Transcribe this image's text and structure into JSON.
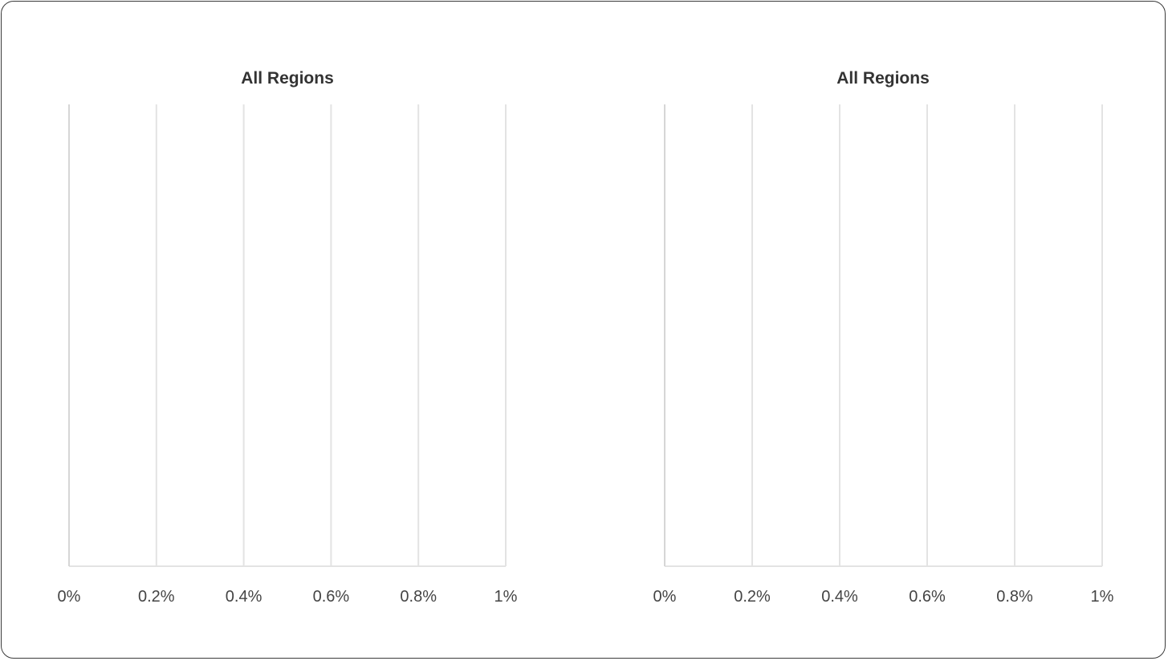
{
  "chart_data": [
    {
      "type": "bar",
      "title": "All Regions",
      "orientation": "horizontal",
      "categories": [],
      "series": [],
      "xlim": [
        0,
        1
      ],
      "x_ticks": [
        0,
        0.2,
        0.4,
        0.6,
        0.8,
        1
      ],
      "x_tick_labels": [
        "0%",
        "0.2%",
        "0.4%",
        "0.6%",
        "0.8%",
        "1%"
      ],
      "grid": true
    },
    {
      "type": "bar",
      "title": "All Regions",
      "orientation": "horizontal",
      "categories": [],
      "series": [],
      "xlim": [
        0,
        1
      ],
      "x_ticks": [
        0,
        0.2,
        0.4,
        0.6,
        0.8,
        1
      ],
      "x_tick_labels": [
        "0%",
        "0.2%",
        "0.4%",
        "0.6%",
        "0.8%",
        "1%"
      ],
      "grid": true
    }
  ],
  "colors": {
    "gridline": "#e3e3e3",
    "axis": "#d6d6d6",
    "title": "#333333",
    "tick_label": "#444444"
  }
}
